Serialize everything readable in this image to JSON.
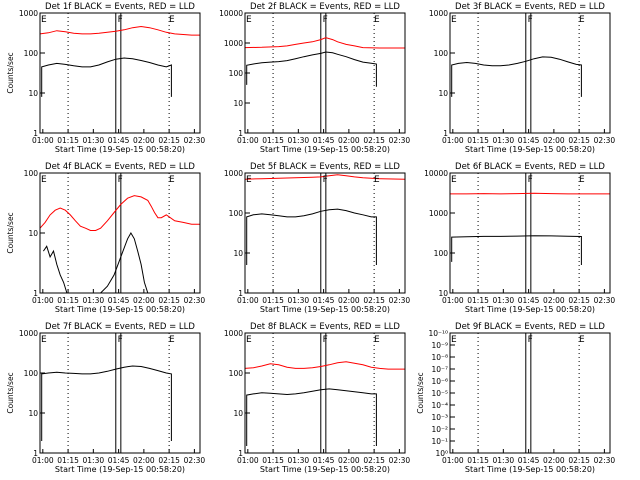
{
  "figure": {
    "background": "#ffffff",
    "events_color": "#000000",
    "lld_color": "#ff0000"
  },
  "chart_data": [
    {
      "type": "line",
      "title": "Det 1f BLACK = Events, RED = LLD",
      "xlabel": "Start Time (19-Sep-15 00:58:20)",
      "ylabel": "Counts/sec",
      "xticks": [
        "01:00",
        "01:15",
        "01:30",
        "01:45",
        "02:00",
        "02:15",
        "02:30"
      ],
      "yscale": "log",
      "ylim": [
        1,
        1000
      ],
      "yticks": [
        "1",
        "10",
        "100",
        "1000"
      ],
      "markers": [
        "E",
        "F",
        "E"
      ],
      "series": [
        {
          "name": "LLD",
          "color": "#ff0000",
          "x": [
            0,
            5,
            10,
            15,
            20,
            25,
            30,
            35,
            40,
            45,
            50,
            55,
            60,
            65,
            70,
            75,
            80,
            85,
            90,
            95
          ],
          "y": [
            300,
            320,
            360,
            340,
            310,
            300,
            300,
            310,
            330,
            350,
            380,
            430,
            460,
            430,
            380,
            330,
            300,
            290,
            280,
            280
          ]
        },
        {
          "name": "Events",
          "color": "#000000",
          "x": [
            1,
            1,
            5,
            10,
            15,
            20,
            25,
            30,
            35,
            40,
            45,
            50,
            55,
            60,
            65,
            70,
            75,
            78,
            78
          ],
          "y": [
            8,
            45,
            50,
            55,
            52,
            48,
            45,
            45,
            50,
            60,
            70,
            75,
            72,
            65,
            58,
            50,
            45,
            50,
            8
          ]
        }
      ]
    },
    {
      "type": "line",
      "title": "Det 2f BLACK = Events, RED = LLD",
      "xlabel": "Start Time (19-Sep-15 00:58:20)",
      "ylabel": "",
      "xticks": [
        "01:00",
        "01:15",
        "01:30",
        "01:45",
        "02:00",
        "02:15",
        "02:30"
      ],
      "yscale": "log",
      "ylim": [
        1,
        10000
      ],
      "yticks": [
        "1",
        "10",
        "100",
        "1000",
        "10000"
      ],
      "markers": [
        "E",
        "F",
        "E"
      ],
      "series": [
        {
          "name": "LLD",
          "color": "#ff0000",
          "x": [
            0,
            10,
            20,
            25,
            30,
            35,
            40,
            45,
            48,
            52,
            55,
            60,
            65,
            70,
            80,
            95
          ],
          "y": [
            700,
            720,
            760,
            800,
            900,
            1000,
            1100,
            1300,
            1500,
            1300,
            1100,
            900,
            800,
            700,
            680,
            680
          ]
        },
        {
          "name": "Events",
          "color": "#000000",
          "x": [
            1,
            1,
            5,
            10,
            15,
            20,
            25,
            30,
            35,
            40,
            45,
            48,
            52,
            55,
            60,
            65,
            70,
            75,
            78,
            78
          ],
          "y": [
            40,
            180,
            200,
            220,
            230,
            240,
            260,
            300,
            350,
            400,
            450,
            500,
            470,
            420,
            350,
            280,
            230,
            210,
            200,
            35
          ]
        }
      ]
    },
    {
      "type": "line",
      "title": "Det 3f BLACK = Events, RED = LLD",
      "xlabel": "Start Time (19-Sep-15 00:58:20)",
      "ylabel": "",
      "xticks": [
        "01:00",
        "01:15",
        "01:30",
        "01:45",
        "02:00",
        "02:15",
        "02:30"
      ],
      "yscale": "log",
      "ylim": [
        1,
        1000
      ],
      "yticks": [
        "1",
        "10",
        "100",
        "1000"
      ],
      "markers": [
        "E",
        "F",
        "E"
      ],
      "series": [
        {
          "name": "Events",
          "color": "#000000",
          "x": [
            1,
            1,
            5,
            10,
            15,
            20,
            25,
            30,
            35,
            40,
            45,
            50,
            55,
            60,
            65,
            70,
            75,
            78,
            78
          ],
          "y": [
            8,
            50,
            55,
            58,
            55,
            50,
            48,
            48,
            50,
            55,
            62,
            72,
            80,
            78,
            70,
            60,
            52,
            50,
            8
          ]
        }
      ]
    },
    {
      "type": "line",
      "title": "Det 4f BLACK = Events, RED = LLD",
      "xlabel": "Start Time (19-Sep-15 00:58:20)",
      "ylabel": "Counts/sec",
      "xticks": [
        "01:00",
        "01:15",
        "01:30",
        "01:45",
        "02:00",
        "02:15",
        "02:30"
      ],
      "yscale": "log",
      "ylim": [
        1,
        100
      ],
      "yticks": [
        "1",
        "10",
        "100"
      ],
      "markers": [
        "E",
        "F",
        "E"
      ],
      "series": [
        {
          "name": "LLD",
          "color": "#ff0000",
          "x": [
            0,
            3,
            6,
            9,
            12,
            15,
            18,
            21,
            24,
            27,
            30,
            33,
            36,
            40,
            44,
            48,
            52,
            56,
            60,
            64,
            66,
            68,
            70,
            72,
            75,
            80,
            85,
            90,
            95
          ],
          "y": [
            12,
            15,
            20,
            24,
            26,
            24,
            20,
            16,
            13,
            12,
            11,
            11,
            12,
            16,
            22,
            30,
            38,
            42,
            40,
            35,
            28,
            22,
            18,
            18,
            20,
            16,
            15,
            14,
            14
          ]
        },
        {
          "name": "Events",
          "color": "#000000",
          "x": [
            2,
            4,
            6,
            8,
            10,
            12,
            14,
            16,
            18,
            20,
            22,
            24,
            36,
            40,
            44,
            48,
            52,
            54,
            56,
            58,
            60,
            62,
            64,
            66
          ],
          "y": [
            5,
            6,
            4,
            5,
            3,
            2,
            1.5,
            1,
            1,
            1,
            1,
            1,
            1,
            1.3,
            2,
            4,
            8,
            10,
            8,
            5,
            3,
            1.5,
            1,
            1
          ]
        }
      ]
    },
    {
      "type": "line",
      "title": "Det 5f BLACK = Events, RED = LLD",
      "xlabel": "Start Time (19-Sep-15 00:58:20)",
      "ylabel": "",
      "xticks": [
        "01:00",
        "01:15",
        "01:30",
        "01:45",
        "02:00",
        "02:15",
        "02:30"
      ],
      "yscale": "log",
      "ylim": [
        1,
        1000
      ],
      "yticks": [
        "1",
        "10",
        "100",
        "1000"
      ],
      "markers": [
        "E",
        "F",
        "E"
      ],
      "series": [
        {
          "name": "LLD",
          "color": "#ff0000",
          "x": [
            0,
            10,
            20,
            30,
            40,
            45,
            50,
            55,
            60,
            65,
            70,
            80,
            95
          ],
          "y": [
            700,
            720,
            740,
            760,
            780,
            800,
            850,
            900,
            850,
            800,
            760,
            720,
            700
          ]
        },
        {
          "name": "Events",
          "color": "#000000",
          "x": [
            1,
            1,
            5,
            10,
            15,
            20,
            25,
            30,
            35,
            40,
            45,
            50,
            55,
            60,
            65,
            70,
            75,
            78,
            78
          ],
          "y": [
            5,
            80,
            90,
            95,
            90,
            85,
            80,
            80,
            85,
            95,
            110,
            120,
            125,
            115,
            100,
            90,
            80,
            80,
            5
          ]
        }
      ]
    },
    {
      "type": "line",
      "title": "Det 6f BLACK = Events, RED = LLD",
      "xlabel": "Start Time (19-Sep-15 00:58:20)",
      "ylabel": "",
      "xticks": [
        "01:00",
        "01:15",
        "01:30",
        "01:45",
        "02:00",
        "02:15",
        "02:30"
      ],
      "yscale": "log",
      "ylim": [
        10,
        10000
      ],
      "yticks": [
        "10",
        "100",
        "1000",
        "10000"
      ],
      "markers": [
        "E",
        "F",
        "E"
      ],
      "series": [
        {
          "name": "LLD",
          "color": "#ff0000",
          "x": [
            0,
            10,
            20,
            30,
            40,
            50,
            60,
            70,
            80,
            95
          ],
          "y": [
            3000,
            3000,
            3050,
            3000,
            3050,
            3100,
            3050,
            3000,
            3000,
            3000
          ]
        },
        {
          "name": "Events",
          "color": "#000000",
          "x": [
            1,
            1,
            10,
            20,
            30,
            40,
            50,
            60,
            70,
            78,
            78
          ],
          "y": [
            60,
            250,
            255,
            260,
            260,
            265,
            270,
            268,
            262,
            258,
            50
          ]
        }
      ]
    },
    {
      "type": "line",
      "title": "Det 7f BLACK = Events, RED = LLD",
      "xlabel": "Start Time (19-Sep-15 00:58:20)",
      "ylabel": "Counts/sec",
      "xticks": [
        "01:00",
        "01:15",
        "01:30",
        "01:45",
        "02:00",
        "02:15",
        "02:30"
      ],
      "yscale": "log",
      "ylim": [
        1,
        1000
      ],
      "yticks": [
        "1",
        "10",
        "100",
        "1000"
      ],
      "markers": [
        "E",
        "F",
        "E"
      ],
      "series": [
        {
          "name": "Events",
          "color": "#000000",
          "x": [
            1,
            1,
            5,
            10,
            15,
            20,
            25,
            30,
            35,
            40,
            45,
            50,
            55,
            60,
            65,
            70,
            75,
            78,
            78
          ],
          "y": [
            2,
            95,
            100,
            105,
            100,
            98,
            95,
            95,
            100,
            110,
            125,
            140,
            150,
            145,
            130,
            115,
            100,
            95,
            2
          ]
        }
      ]
    },
    {
      "type": "line",
      "title": "Det 8f BLACK = Events, RED = LLD",
      "xlabel": "Start Time (19-Sep-15 00:58:20)",
      "ylabel": "",
      "xticks": [
        "01:00",
        "01:15",
        "01:30",
        "01:45",
        "02:00",
        "02:15",
        "02:30"
      ],
      "yscale": "log",
      "ylim": [
        1,
        1000
      ],
      "yticks": [
        "1",
        "10",
        "100",
        "1000"
      ],
      "markers": [
        "E",
        "F",
        "E"
      ],
      "series": [
        {
          "name": "LLD",
          "color": "#ff0000",
          "x": [
            0,
            5,
            10,
            15,
            20,
            25,
            30,
            35,
            40,
            45,
            50,
            55,
            60,
            65,
            70,
            75,
            80,
            85,
            90,
            95
          ],
          "y": [
            130,
            135,
            150,
            170,
            160,
            140,
            130,
            130,
            135,
            145,
            160,
            180,
            190,
            175,
            160,
            140,
            130,
            125,
            125,
            125
          ]
        },
        {
          "name": "Events",
          "color": "#000000",
          "x": [
            1,
            1,
            5,
            10,
            15,
            20,
            25,
            30,
            35,
            40,
            45,
            50,
            55,
            60,
            65,
            70,
            75,
            78,
            78
          ],
          "y": [
            1.5,
            28,
            30,
            32,
            31,
            30,
            29,
            30,
            32,
            35,
            38,
            40,
            38,
            36,
            34,
            32,
            30,
            30,
            1.5
          ]
        }
      ]
    },
    {
      "type": "line",
      "title": "Det 9f BLACK = Events, RED = LLD",
      "xlabel": "Start Time (19-Sep-15 00:58:20)",
      "ylabel": "Counts/sec",
      "xticks": [
        "01:00",
        "01:15",
        "01:30",
        "01:45",
        "02:00",
        "02:15",
        "02:30"
      ],
      "yscale": "log",
      "ylim": [
        1,
        1e-10
      ],
      "yticks": [
        "10⁰",
        "10⁻¹",
        "10⁻²",
        "10⁻³",
        "10⁻⁴",
        "10⁻⁵",
        "10⁻⁶",
        "10⁻⁷",
        "10⁻⁸",
        "10⁻⁹",
        "10⁻¹⁰"
      ],
      "markers": [
        "E",
        "F",
        "E"
      ],
      "series": []
    }
  ]
}
